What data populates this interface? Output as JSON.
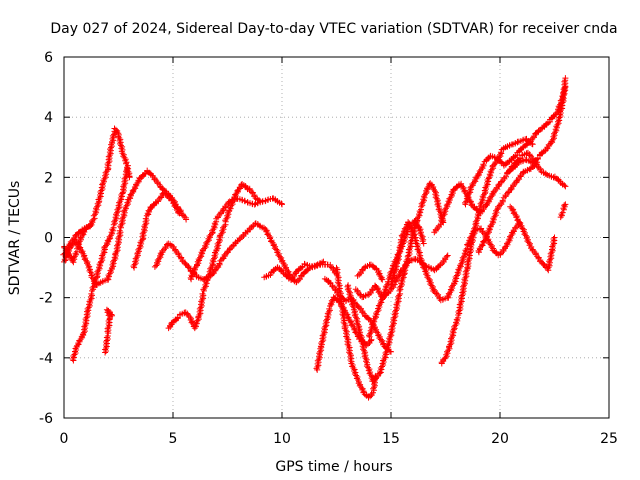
{
  "chart_data": {
    "type": "scatter",
    "title": "Day 027 of 2024, Sidereal Day-to-day VTEC variation (SDTVAR) for receiver cnda",
    "xlabel": "GPS time / hours",
    "ylabel": "SDTVAR / TECUs",
    "xlim": [
      0,
      25
    ],
    "ylim": [
      -6,
      6
    ],
    "xticks": [
      "0",
      "5",
      "10",
      "15",
      "20",
      "25"
    ],
    "yticks": [
      "-6",
      "-4",
      "-2",
      "0",
      "2",
      "4",
      "6"
    ],
    "grid": true,
    "marker": "+",
    "color": "#ff0000",
    "tracks": [
      [
        [
          0.0,
          -0.6
        ],
        [
          0.3,
          -0.2
        ],
        [
          0.6,
          0.1
        ],
        [
          0.9,
          0.3
        ],
        [
          1.2,
          0.4
        ],
        [
          1.4,
          0.7
        ],
        [
          1.6,
          1.2
        ],
        [
          1.8,
          1.8
        ],
        [
          2.0,
          2.3
        ],
        [
          2.2,
          3.2
        ],
        [
          2.35,
          3.6
        ],
        [
          2.5,
          3.4
        ],
        [
          2.7,
          2.8
        ],
        [
          2.9,
          2.4
        ],
        [
          3.0,
          2.0
        ]
      ],
      [
        [
          0.0,
          -0.8
        ],
        [
          0.3,
          -0.3
        ],
        [
          0.5,
          -0.1
        ],
        [
          0.7,
          -0.3
        ],
        [
          0.9,
          -0.6
        ],
        [
          1.1,
          -0.9
        ],
        [
          1.3,
          -1.3
        ],
        [
          1.5,
          -1.6
        ],
        [
          1.7,
          -1.5
        ],
        [
          2.0,
          -1.4
        ],
        [
          2.2,
          -1.0
        ],
        [
          2.4,
          -0.5
        ],
        [
          2.6,
          0.3
        ],
        [
          2.8,
          0.9
        ],
        [
          3.0,
          1.3
        ],
        [
          3.2,
          1.6
        ],
        [
          3.5,
          2.0
        ],
        [
          3.8,
          2.2
        ],
        [
          4.1,
          2.0
        ],
        [
          4.4,
          1.7
        ],
        [
          4.7,
          1.5
        ],
        [
          5.0,
          1.3
        ],
        [
          5.2,
          1.0
        ],
        [
          5.4,
          0.8
        ],
        [
          5.6,
          0.6
        ]
      ],
      [
        [
          0.4,
          -4.1
        ],
        [
          0.6,
          -3.6
        ],
        [
          0.9,
          -3.2
        ],
        [
          1.1,
          -2.4
        ],
        [
          1.3,
          -1.8
        ],
        [
          1.5,
          -1.3
        ],
        [
          1.7,
          -0.8
        ],
        [
          1.9,
          -0.3
        ],
        [
          2.1,
          0.0
        ],
        [
          2.3,
          0.4
        ],
        [
          2.5,
          1.0
        ],
        [
          2.7,
          1.5
        ],
        [
          2.9,
          2.3
        ]
      ],
      [
        [
          1.9,
          -3.8
        ],
        [
          2.0,
          -3.2
        ],
        [
          2.1,
          -2.7
        ],
        [
          2.0,
          -2.4
        ],
        [
          2.2,
          -2.6
        ]
      ],
      [
        [
          3.2,
          -1.0
        ],
        [
          3.4,
          -0.5
        ],
        [
          3.6,
          0.0
        ],
        [
          3.8,
          0.7
        ],
        [
          4.0,
          1.0
        ],
        [
          4.3,
          1.2
        ],
        [
          4.6,
          1.5
        ],
        [
          5.0,
          1.2
        ],
        [
          5.3,
          0.8
        ]
      ],
      [
        [
          4.2,
          -1.0
        ],
        [
          4.5,
          -0.5
        ],
        [
          4.8,
          -0.2
        ],
        [
          5.0,
          -0.3
        ],
        [
          5.3,
          -0.6
        ],
        [
          5.6,
          -0.9
        ],
        [
          5.8,
          -1.1
        ],
        [
          6.1,
          -1.3
        ],
        [
          6.4,
          -1.4
        ],
        [
          6.8,
          -1.2
        ],
        [
          7.2,
          -0.8
        ],
        [
          7.6,
          -0.4
        ],
        [
          8.0,
          -0.1
        ],
        [
          8.4,
          0.2
        ],
        [
          8.8,
          0.5
        ],
        [
          9.2,
          0.3
        ],
        [
          9.5,
          -0.1
        ],
        [
          9.8,
          -0.5
        ],
        [
          10.1,
          -0.9
        ],
        [
          10.4,
          -1.3
        ],
        [
          10.7,
          -1.5
        ],
        [
          11.0,
          -1.2
        ],
        [
          11.3,
          -1.0
        ],
        [
          11.6,
          -0.9
        ],
        [
          11.9,
          -0.8
        ]
      ],
      [
        [
          4.8,
          -3.0
        ],
        [
          5.0,
          -2.8
        ],
        [
          5.3,
          -2.6
        ],
        [
          5.6,
          -2.5
        ],
        [
          5.8,
          -2.7
        ],
        [
          6.0,
          -3.0
        ],
        [
          6.2,
          -2.6
        ],
        [
          6.4,
          -1.8
        ],
        [
          6.6,
          -1.4
        ],
        [
          6.8,
          -0.9
        ],
        [
          7.0,
          -0.4
        ],
        [
          7.2,
          0.1
        ],
        [
          7.4,
          0.5
        ],
        [
          7.6,
          0.9
        ],
        [
          7.8,
          1.3
        ],
        [
          8.0,
          1.6
        ],
        [
          8.2,
          1.8
        ],
        [
          8.5,
          1.6
        ],
        [
          8.8,
          1.3
        ],
        [
          9.0,
          1.2
        ]
      ],
      [
        [
          5.8,
          -1.4
        ],
        [
          6.1,
          -0.9
        ],
        [
          6.4,
          -0.4
        ],
        [
          6.8,
          0.2
        ],
        [
          7.0,
          0.6
        ],
        [
          7.3,
          0.9
        ],
        [
          7.6,
          1.2
        ],
        [
          8.0,
          1.3
        ],
        [
          8.4,
          1.2
        ],
        [
          8.8,
          1.1
        ],
        [
          9.2,
          1.2
        ],
        [
          9.6,
          1.3
        ],
        [
          10.0,
          1.1
        ]
      ],
      [
        [
          9.2,
          -1.3
        ],
        [
          9.5,
          -1.2
        ],
        [
          9.8,
          -1.0
        ],
        [
          10.1,
          -1.2
        ],
        [
          10.4,
          -1.4
        ],
        [
          10.7,
          -1.1
        ],
        [
          11.0,
          -0.9
        ],
        [
          11.4,
          -1.0
        ],
        [
          11.8,
          -0.9
        ],
        [
          12.2,
          -0.9
        ],
        [
          12.5,
          -1.2
        ]
      ],
      [
        [
          11.6,
          -4.4
        ],
        [
          11.8,
          -3.6
        ],
        [
          12.0,
          -2.9
        ],
        [
          12.2,
          -2.3
        ],
        [
          12.4,
          -2.0
        ],
        [
          12.7,
          -2.2
        ],
        [
          13.0,
          -2.6
        ],
        [
          13.3,
          -3.0
        ],
        [
          13.6,
          -3.4
        ],
        [
          13.9,
          -3.6
        ],
        [
          14.1,
          -3.4
        ]
      ],
      [
        [
          12.0,
          -1.4
        ],
        [
          12.3,
          -1.6
        ],
        [
          12.6,
          -1.9
        ],
        [
          12.9,
          -2.1
        ],
        [
          13.2,
          -2.0
        ],
        [
          13.5,
          -2.3
        ],
        [
          13.8,
          -2.6
        ],
        [
          14.1,
          -2.8
        ],
        [
          14.4,
          -3.2
        ],
        [
          14.7,
          -3.6
        ],
        [
          15.0,
          -3.8
        ]
      ],
      [
        [
          12.5,
          -1.0
        ],
        [
          12.7,
          -2.0
        ],
        [
          12.9,
          -3.0
        ],
        [
          13.2,
          -4.2
        ],
        [
          13.5,
          -4.8
        ],
        [
          13.8,
          -5.2
        ],
        [
          14.0,
          -5.3
        ],
        [
          14.2,
          -5.1
        ],
        [
          14.3,
          -4.6
        ]
      ],
      [
        [
          13.0,
          -1.6
        ],
        [
          13.3,
          -2.4
        ],
        [
          13.6,
          -3.2
        ],
        [
          13.9,
          -4.2
        ],
        [
          14.2,
          -4.8
        ],
        [
          14.5,
          -4.5
        ],
        [
          14.8,
          -3.8
        ],
        [
          15.0,
          -3.2
        ],
        [
          15.2,
          -2.5
        ],
        [
          15.4,
          -1.8
        ],
        [
          15.6,
          -1.2
        ],
        [
          15.8,
          -0.6
        ],
        [
          16.0,
          0.1
        ],
        [
          16.2,
          0.6
        ],
        [
          16.4,
          1.0
        ],
        [
          16.6,
          1.5
        ],
        [
          16.8,
          1.8
        ],
        [
          17.0,
          1.6
        ],
        [
          17.2,
          1.0
        ],
        [
          17.4,
          0.5
        ]
      ],
      [
        [
          13.4,
          -1.7
        ],
        [
          13.7,
          -2.0
        ],
        [
          14.0,
          -1.9
        ],
        [
          14.3,
          -1.6
        ],
        [
          14.6,
          -2.0
        ],
        [
          14.9,
          -1.8
        ],
        [
          15.2,
          -1.5
        ],
        [
          15.5,
          -1.1
        ],
        [
          15.8,
          -0.8
        ],
        [
          16.1,
          -0.7
        ],
        [
          16.4,
          -0.8
        ],
        [
          16.7,
          -1.0
        ],
        [
          17.0,
          -1.1
        ],
        [
          17.3,
          -0.9
        ],
        [
          17.6,
          -0.6
        ]
      ],
      [
        [
          14.0,
          -3.3
        ],
        [
          14.3,
          -2.6
        ],
        [
          14.6,
          -2.0
        ],
        [
          14.9,
          -1.4
        ],
        [
          15.2,
          -0.8
        ],
        [
          15.5,
          -0.3
        ],
        [
          15.8,
          0.3
        ],
        [
          16.1,
          0.6
        ],
        [
          16.3,
          0.3
        ],
        [
          16.5,
          -0.2
        ]
      ],
      [
        [
          13.5,
          -1.3
        ],
        [
          13.8,
          -1.0
        ],
        [
          14.1,
          -0.9
        ],
        [
          14.4,
          -1.1
        ],
        [
          14.6,
          -1.4
        ]
      ],
      [
        [
          15.0,
          -1.6
        ],
        [
          15.3,
          -0.8
        ],
        [
          15.5,
          0.0
        ],
        [
          15.8,
          0.5
        ],
        [
          16.1,
          0.0
        ],
        [
          16.4,
          -0.8
        ],
        [
          16.7,
          -1.3
        ],
        [
          17.0,
          -1.8
        ],
        [
          17.3,
          -2.1
        ],
        [
          17.6,
          -2.0
        ],
        [
          17.9,
          -1.5
        ],
        [
          18.2,
          -0.9
        ],
        [
          18.5,
          -0.3
        ],
        [
          18.8,
          0.2
        ],
        [
          19.1,
          0.3
        ],
        [
          19.4,
          0.0
        ],
        [
          19.7,
          -0.4
        ],
        [
          20.0,
          -0.6
        ],
        [
          20.3,
          -0.3
        ],
        [
          20.6,
          0.2
        ],
        [
          20.9,
          0.5
        ]
      ],
      [
        [
          17.3,
          -4.2
        ],
        [
          17.5,
          -4.0
        ],
        [
          17.7,
          -3.6
        ],
        [
          17.9,
          -3.0
        ],
        [
          18.1,
          -2.6
        ],
        [
          18.3,
          -1.8
        ],
        [
          18.5,
          -1.0
        ],
        [
          18.7,
          -0.2
        ],
        [
          18.9,
          0.5
        ],
        [
          19.1,
          1.0
        ],
        [
          19.3,
          1.5
        ],
        [
          19.5,
          2.0
        ],
        [
          19.7,
          2.4
        ],
        [
          19.9,
          2.6
        ],
        [
          20.1,
          2.9
        ],
        [
          20.3,
          3.0
        ],
        [
          20.6,
          3.1
        ],
        [
          20.9,
          3.2
        ],
        [
          21.2,
          3.3
        ],
        [
          21.5,
          3.1
        ]
      ],
      [
        [
          17.0,
          0.2
        ],
        [
          17.3,
          0.5
        ],
        [
          17.6,
          1.1
        ],
        [
          17.9,
          1.6
        ],
        [
          18.2,
          1.8
        ],
        [
          18.5,
          1.4
        ],
        [
          18.8,
          1.0
        ],
        [
          19.1,
          0.8
        ],
        [
          19.4,
          1.1
        ],
        [
          19.7,
          1.5
        ],
        [
          20.0,
          1.8
        ],
        [
          20.3,
          2.1
        ],
        [
          20.6,
          2.3
        ],
        [
          20.9,
          2.5
        ],
        [
          21.2,
          2.6
        ],
        [
          21.5,
          2.5
        ],
        [
          21.8,
          2.7
        ],
        [
          22.1,
          2.9
        ],
        [
          22.4,
          3.2
        ],
        [
          22.7,
          3.9
        ],
        [
          22.9,
          4.6
        ],
        [
          23.0,
          5.3
        ]
      ],
      [
        [
          18.4,
          1.1
        ],
        [
          18.7,
          1.7
        ],
        [
          19.0,
          2.1
        ],
        [
          19.3,
          2.5
        ],
        [
          19.6,
          2.7
        ],
        [
          19.9,
          2.6
        ],
        [
          20.2,
          2.4
        ],
        [
          20.5,
          2.6
        ],
        [
          20.8,
          2.8
        ],
        [
          21.1,
          3.0
        ],
        [
          21.4,
          3.2
        ],
        [
          21.7,
          3.5
        ],
        [
          22.0,
          3.7
        ],
        [
          22.3,
          3.9
        ],
        [
          22.6,
          4.1
        ],
        [
          22.8,
          4.5
        ],
        [
          23.0,
          5.0
        ]
      ],
      [
        [
          20.5,
          1.0
        ],
        [
          20.8,
          0.6
        ],
        [
          21.1,
          0.2
        ],
        [
          21.4,
          -0.3
        ],
        [
          21.7,
          -0.6
        ],
        [
          22.0,
          -0.9
        ],
        [
          22.2,
          -1.1
        ],
        [
          22.4,
          -0.4
        ],
        [
          22.5,
          0.0
        ]
      ],
      [
        [
          20.4,
          2.2
        ],
        [
          20.7,
          2.5
        ],
        [
          21.0,
          2.7
        ],
        [
          21.3,
          2.8
        ],
        [
          21.6,
          2.5
        ],
        [
          21.9,
          2.2
        ],
        [
          22.2,
          2.1
        ],
        [
          22.5,
          2.0
        ],
        [
          22.8,
          1.8
        ],
        [
          23.0,
          1.7
        ]
      ],
      [
        [
          19.0,
          -0.5
        ],
        [
          19.3,
          -0.1
        ],
        [
          19.6,
          0.4
        ],
        [
          19.9,
          1.0
        ],
        [
          20.2,
          1.3
        ],
        [
          20.5,
          1.6
        ],
        [
          20.8,
          1.9
        ],
        [
          21.1,
          2.2
        ],
        [
          21.4,
          2.3
        ],
        [
          21.7,
          2.5
        ]
      ],
      [
        [
          22.8,
          0.7
        ],
        [
          22.9,
          0.9
        ],
        [
          23.0,
          1.1
        ]
      ],
      [
        [
          0.0,
          -0.3
        ],
        [
          0.2,
          -0.5
        ],
        [
          0.4,
          -0.8
        ],
        [
          0.6,
          -0.4
        ],
        [
          0.8,
          0.0
        ],
        [
          1.0,
          0.3
        ],
        [
          1.2,
          0.4
        ]
      ]
    ]
  }
}
